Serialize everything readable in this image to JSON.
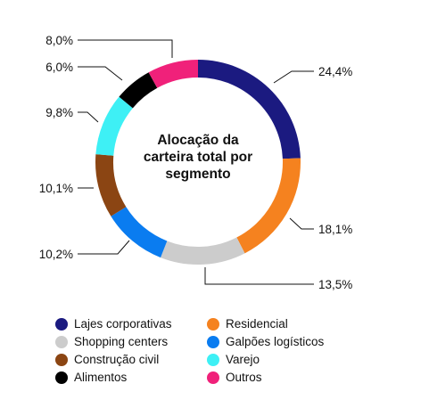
{
  "chart_data": {
    "type": "pie",
    "title": "Alocação da carteira total por segmento",
    "slices": [
      {
        "label": "Lajes corporativas",
        "value": 24.4,
        "display": "24,4%",
        "color": "#1b1a80"
      },
      {
        "label": "Residencial",
        "value": 18.1,
        "display": "18,1%",
        "color": "#f5821f"
      },
      {
        "label": "Shopping centers",
        "value": 13.5,
        "display": "13,5%",
        "color": "#cccccc"
      },
      {
        "label": "Galpões logísticos",
        "value": 10.2,
        "display": "10,2%",
        "color": "#0a7cf0"
      },
      {
        "label": "Construção civil",
        "value": 10.1,
        "display": "10,1%",
        "color": "#8b4513"
      },
      {
        "label": "Varejo",
        "value": 9.8,
        "display": "9,8%",
        "color": "#3ef0f5"
      },
      {
        "label": "Alimentos",
        "value": 6.0,
        "display": "6,0%",
        "color": "#000000"
      },
      {
        "label": "Outros",
        "value": 8.0,
        "display": "8,0%",
        "color": "#f0217a"
      }
    ],
    "legend_order": [
      "Lajes corporativas",
      "Residencial",
      "Shopping centers",
      "Galpões logísticos",
      "Construção civil",
      "Varejo",
      "Alimentos",
      "Outros"
    ]
  }
}
